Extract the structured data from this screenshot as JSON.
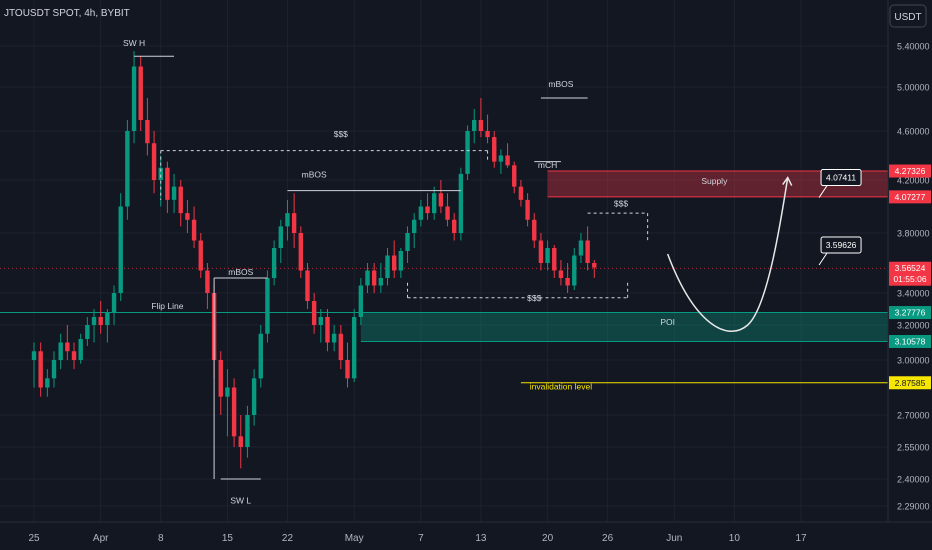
{
  "header": {
    "symbol_title": "JTOUSDT SPOT, 4h, BYBIT",
    "currency": "USDT"
  },
  "chart_data": {
    "type": "candlestick",
    "price_axis": {
      "ticks": [
        "5.40000",
        "5.00000",
        "4.60000",
        "4.20000",
        "3.80000",
        "3.40000",
        "3.20000",
        "3.00000",
        "2.70000",
        "2.55000",
        "2.40000",
        "2.29000"
      ],
      "tick_values": [
        5.4,
        5.0,
        4.6,
        4.2,
        3.8,
        3.4,
        3.2,
        3.0,
        2.7,
        2.55,
        2.4,
        2.29
      ]
    },
    "time_axis": {
      "ticks": [
        "25",
        "Apr",
        "8",
        "15",
        "22",
        "May",
        "7",
        "13",
        "20",
        "26",
        "Jun",
        "10",
        "17"
      ],
      "tick_index": [
        0,
        10,
        19,
        29,
        38,
        48,
        58,
        67,
        77,
        86,
        96,
        105,
        115
      ]
    },
    "price_badges": [
      {
        "value": "4.27326",
        "color": "#f23645",
        "role": "supply-top"
      },
      {
        "value": "4.07277",
        "color": "#f23645",
        "role": "supply-bottom"
      },
      {
        "value": "3.56524",
        "color": "#f23645",
        "role": "last-price",
        "countdown": "01:55:06"
      },
      {
        "value": "3.27776",
        "color": "#089981",
        "role": "poi-top"
      },
      {
        "value": "3.10578",
        "color": "#089981",
        "role": "poi-bottom"
      },
      {
        "value": "2.87585",
        "color": "#f7e600",
        "role": "invalidation"
      }
    ],
    "zones": [
      {
        "label": "Supply",
        "from_index": 77,
        "to_index": 135,
        "price_high": 4.27326,
        "price_low": 4.07277,
        "color": "#f23645"
      },
      {
        "label": "POI",
        "from_index": 49,
        "to_index": 135,
        "price_high": 3.27776,
        "price_low": 3.10578,
        "color": "#089981"
      }
    ],
    "annotations": [
      {
        "text": "SW H",
        "index": 15,
        "price": 5.4
      },
      {
        "text": "SW L",
        "index": 31,
        "price": 2.3
      },
      {
        "text": "$$$",
        "index": 46,
        "price": 4.55
      },
      {
        "text": "mBOS",
        "index": 42,
        "price": 4.22
      },
      {
        "text": "mBOS",
        "index": 31,
        "price": 3.52
      },
      {
        "text": "Flip Line",
        "index": 20,
        "price": 3.3
      },
      {
        "text": "mBOS",
        "index": 79,
        "price": 5.0
      },
      {
        "text": "mCH",
        "index": 77,
        "price": 4.3
      },
      {
        "text": "$$$",
        "index": 88,
        "price": 4.0
      },
      {
        "text": "$$$",
        "index": 75,
        "price": 3.35
      },
      {
        "text": "POI",
        "index": 95,
        "price": 3.2
      },
      {
        "text": "Supply",
        "index": 102,
        "price": 4.17
      },
      {
        "text": "invalidation level",
        "index": 79,
        "price": 2.84
      }
    ],
    "callouts": [
      {
        "text": "4.07411",
        "index": 118,
        "price": 4.22
      },
      {
        "text": "3.59626",
        "index": 118,
        "price": 3.72
      }
    ],
    "last_price": 3.56524,
    "candles": [
      [
        3.0,
        3.1,
        2.85,
        3.05
      ],
      [
        3.05,
        3.1,
        2.8,
        2.85
      ],
      [
        2.85,
        2.95,
        2.8,
        2.9
      ],
      [
        2.9,
        3.05,
        2.85,
        3.0
      ],
      [
        3.0,
        3.15,
        2.95,
        3.1
      ],
      [
        3.1,
        3.2,
        3.0,
        3.05
      ],
      [
        3.05,
        3.1,
        2.95,
        3.0
      ],
      [
        3.0,
        3.15,
        2.98,
        3.12
      ],
      [
        3.12,
        3.25,
        3.08,
        3.2
      ],
      [
        3.2,
        3.3,
        3.1,
        3.25
      ],
      [
        3.25,
        3.35,
        3.15,
        3.2
      ],
      [
        3.2,
        3.3,
        3.1,
        3.28
      ],
      [
        3.28,
        3.45,
        3.2,
        3.4
      ],
      [
        3.4,
        4.1,
        3.35,
        4.0
      ],
      [
        4.0,
        4.7,
        3.9,
        4.6
      ],
      [
        4.6,
        5.35,
        4.5,
        5.2
      ],
      [
        5.2,
        5.3,
        4.6,
        4.7
      ],
      [
        4.7,
        4.9,
        4.4,
        4.5
      ],
      [
        4.5,
        4.6,
        4.1,
        4.2
      ],
      [
        4.2,
        4.4,
        4.0,
        4.3
      ],
      [
        4.3,
        4.35,
        3.95,
        4.05
      ],
      [
        4.05,
        4.25,
        3.95,
        4.15
      ],
      [
        4.15,
        4.2,
        3.85,
        3.95
      ],
      [
        3.95,
        4.05,
        3.8,
        3.9
      ],
      [
        3.9,
        4.0,
        3.7,
        3.75
      ],
      [
        3.75,
        3.8,
        3.5,
        3.55
      ],
      [
        3.55,
        3.6,
        3.3,
        3.4
      ],
      [
        3.4,
        3.45,
        2.9,
        3.0
      ],
      [
        3.0,
        3.05,
        2.7,
        2.8
      ],
      [
        2.8,
        2.95,
        2.6,
        2.85
      ],
      [
        2.85,
        2.9,
        2.55,
        2.6
      ],
      [
        2.6,
        2.7,
        2.45,
        2.55
      ],
      [
        2.55,
        2.75,
        2.5,
        2.7
      ],
      [
        2.7,
        2.95,
        2.65,
        2.9
      ],
      [
        2.9,
        3.2,
        2.85,
        3.15
      ],
      [
        3.15,
        3.55,
        3.1,
        3.5
      ],
      [
        3.5,
        3.75,
        3.45,
        3.7
      ],
      [
        3.7,
        3.9,
        3.6,
        3.85
      ],
      [
        3.85,
        4.05,
        3.75,
        3.95
      ],
      [
        3.95,
        4.1,
        3.7,
        3.8
      ],
      [
        3.8,
        3.85,
        3.5,
        3.55
      ],
      [
        3.55,
        3.6,
        3.3,
        3.35
      ],
      [
        3.35,
        3.4,
        3.15,
        3.2
      ],
      [
        3.2,
        3.3,
        3.1,
        3.25
      ],
      [
        3.25,
        3.3,
        3.05,
        3.1
      ],
      [
        3.1,
        3.2,
        3.05,
        3.15
      ],
      [
        3.15,
        3.2,
        2.95,
        3.0
      ],
      [
        3.0,
        3.1,
        2.85,
        2.9
      ],
      [
        2.9,
        3.3,
        2.88,
        3.25
      ],
      [
        3.25,
        3.5,
        3.2,
        3.45
      ],
      [
        3.45,
        3.6,
        3.4,
        3.55
      ],
      [
        3.55,
        3.6,
        3.4,
        3.45
      ],
      [
        3.45,
        3.6,
        3.4,
        3.5
      ],
      [
        3.5,
        3.7,
        3.45,
        3.65
      ],
      [
        3.65,
        3.75,
        3.5,
        3.55
      ],
      [
        3.55,
        3.7,
        3.5,
        3.68
      ],
      [
        3.68,
        3.85,
        3.6,
        3.8
      ],
      [
        3.8,
        3.95,
        3.7,
        3.9
      ],
      [
        3.9,
        4.05,
        3.85,
        4.0
      ],
      [
        4.0,
        4.1,
        3.9,
        3.95
      ],
      [
        3.95,
        4.15,
        3.9,
        4.1
      ],
      [
        4.1,
        4.2,
        3.95,
        4.0
      ],
      [
        4.0,
        4.1,
        3.85,
        3.9
      ],
      [
        3.9,
        3.95,
        3.75,
        3.8
      ],
      [
        3.8,
        4.3,
        3.75,
        4.25
      ],
      [
        4.25,
        4.65,
        4.2,
        4.6
      ],
      [
        4.6,
        4.8,
        4.5,
        4.7
      ],
      [
        4.7,
        4.9,
        4.55,
        4.6
      ],
      [
        4.6,
        4.75,
        4.5,
        4.55
      ],
      [
        4.55,
        4.6,
        4.3,
        4.35
      ],
      [
        4.35,
        4.45,
        4.25,
        4.4
      ],
      [
        4.4,
        4.5,
        4.3,
        4.32
      ],
      [
        4.32,
        4.35,
        4.1,
        4.15
      ],
      [
        4.15,
        4.2,
        4.0,
        4.05
      ],
      [
        4.05,
        4.1,
        3.85,
        3.9
      ],
      [
        3.9,
        3.95,
        3.7,
        3.75
      ],
      [
        3.75,
        3.8,
        3.55,
        3.6
      ],
      [
        3.6,
        3.75,
        3.55,
        3.7
      ],
      [
        3.7,
        3.72,
        3.5,
        3.55
      ],
      [
        3.55,
        3.62,
        3.45,
        3.5
      ],
      [
        3.5,
        3.6,
        3.4,
        3.45
      ],
      [
        3.45,
        3.7,
        3.42,
        3.65
      ],
      [
        3.65,
        3.8,
        3.6,
        3.75
      ],
      [
        3.75,
        3.85,
        3.55,
        3.6
      ],
      [
        3.6,
        3.62,
        3.5,
        3.57
      ]
    ]
  }
}
